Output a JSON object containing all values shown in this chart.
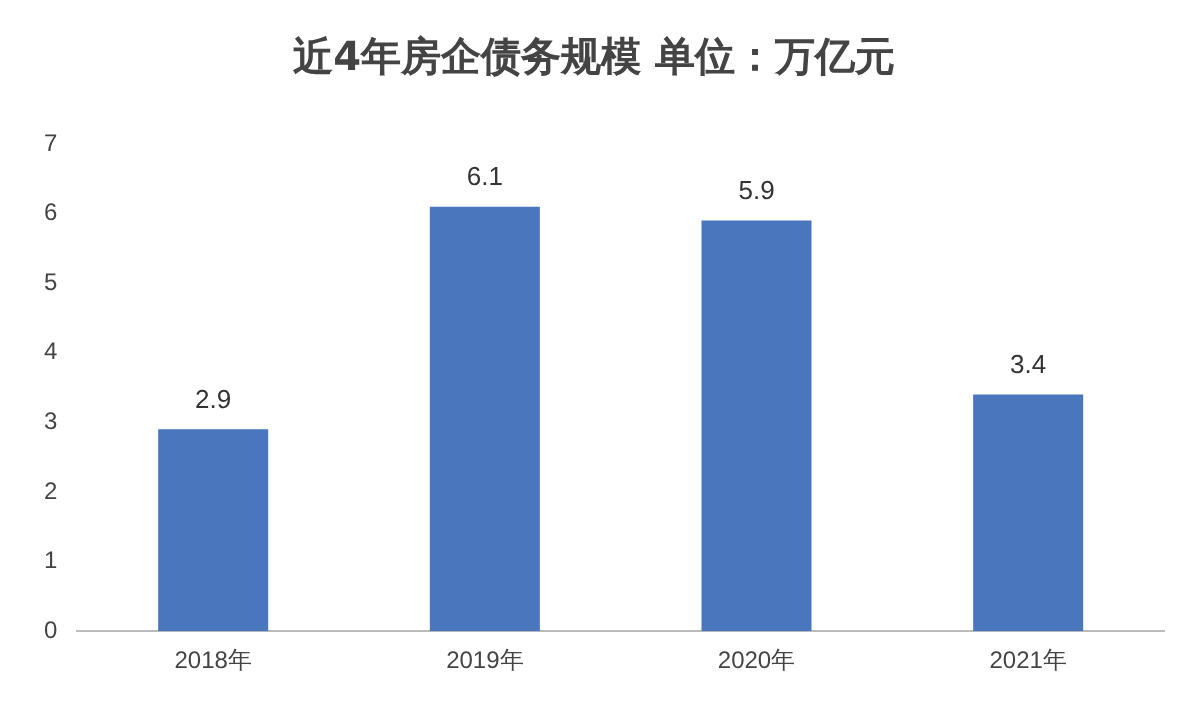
{
  "chart_data": {
    "type": "bar",
    "title": "近4年房企债务规模 单位：万亿元",
    "categories": [
      "2018年",
      "2019年",
      "2020年",
      "2021年"
    ],
    "values": [
      2.9,
      6.1,
      5.9,
      3.4
    ],
    "color": "#4a76bd",
    "ylim": [
      0,
      7
    ],
    "yticks": [
      0,
      1,
      2,
      3,
      4,
      5,
      6,
      7
    ],
    "grid": false,
    "legend": false,
    "data_labels": true
  }
}
